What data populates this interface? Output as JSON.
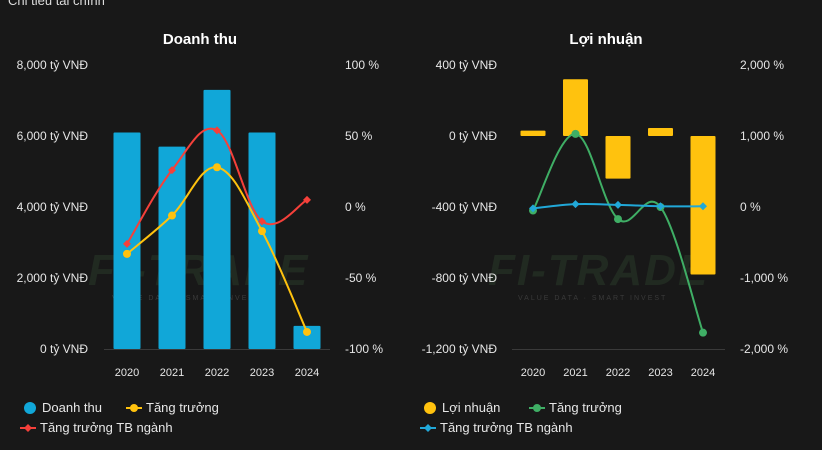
{
  "header": "Chỉ tiêu tài chính",
  "colors": {
    "revenue": "#11a7d8",
    "growth_yellow": "#ffc20e",
    "industry_red": "#f5403a",
    "profit": "#ffc20e",
    "growth_green": "#3fae65",
    "industry_blue": "#21a8d8"
  },
  "watermark": {
    "logo": "FI-TRADE",
    "tagline": "VALUE DATA · SMART INVEST"
  },
  "chart_data": [
    {
      "type": "bar",
      "title": "Doanh thu",
      "categories": [
        "2020",
        "2021",
        "2022",
        "2023",
        "2024"
      ],
      "left_axis": {
        "ticks": [
          "8,000 tỷ VNĐ",
          "6,000 tỷ VNĐ",
          "4,000 tỷ VNĐ",
          "2,000 tỷ VNĐ",
          "0 tỷ VNĐ"
        ],
        "range": [
          0,
          8000
        ]
      },
      "right_axis": {
        "ticks": [
          "100 %",
          "50 %",
          "0 %",
          "-50 %",
          "-100 %"
        ],
        "range": [
          -100,
          100
        ]
      },
      "series": [
        {
          "name": "Doanh thu",
          "kind": "bar",
          "axis": "left",
          "values": [
            6100,
            5700,
            7300,
            6100,
            650
          ]
        },
        {
          "name": "Tăng trưởng",
          "kind": "line",
          "axis": "right",
          "values": [
            -33,
            -6,
            28,
            -17,
            -88
          ]
        },
        {
          "name": "Tăng trưởng TB ngành",
          "kind": "line",
          "axis": "right",
          "values": [
            -26,
            26,
            54,
            -10,
            5
          ]
        }
      ],
      "legend": [
        "Doanh thu",
        "Tăng trưởng",
        "Tăng trưởng TB ngành"
      ]
    },
    {
      "type": "bar",
      "title": "Lợi nhuận",
      "categories": [
        "2020",
        "2021",
        "2022",
        "2023",
        "2024"
      ],
      "left_axis": {
        "ticks": [
          "400 tỷ VNĐ",
          "0 tỷ VNĐ",
          "-400 tỷ VNĐ",
          "-800 tỷ VNĐ",
          "-1,200 tỷ VNĐ"
        ],
        "range": [
          -1200,
          400
        ]
      },
      "right_axis": {
        "ticks": [
          "2,000 %",
          "1,000 %",
          "0 %",
          "-1,000 %",
          "-2,000 %"
        ],
        "range": [
          -2000,
          2000
        ]
      },
      "series": [
        {
          "name": "Lợi nhuận",
          "kind": "bar",
          "axis": "left",
          "values": [
            30,
            320,
            -240,
            45,
            -780
          ]
        },
        {
          "name": "Tăng trưởng",
          "kind": "line",
          "axis": "right",
          "values": [
            -50,
            1030,
            -170,
            0,
            -1770
          ]
        },
        {
          "name": "Tăng trưởng TB ngành",
          "kind": "line",
          "axis": "right",
          "values": [
            -20,
            40,
            30,
            10,
            10
          ]
        }
      ],
      "legend": [
        "Lợi nhuận",
        "Tăng trưởng",
        "Tăng trưởng TB ngành"
      ]
    }
  ]
}
